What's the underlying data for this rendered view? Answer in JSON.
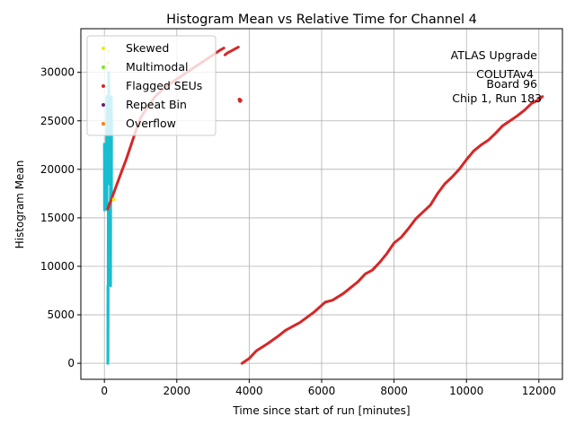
{
  "chart_data": {
    "type": "scatter",
    "title": "Histogram Mean vs Relative Time for Channel 4",
    "xlabel": "Time since start of run [minutes]",
    "ylabel": "Histogram Mean",
    "xlim": [
      -650,
      12650
    ],
    "ylim": [
      -1650,
      34500
    ],
    "xticks": [
      0,
      2000,
      4000,
      6000,
      8000,
      10000,
      12000
    ],
    "yticks": [
      0,
      5000,
      10000,
      15000,
      20000,
      25000,
      30000
    ],
    "grid": true,
    "legend_position": "top-left",
    "annotation": [
      "ATLAS Upgrade",
      "COLUTAv4",
      "Board 96",
      "Chip 1, Run 183"
    ],
    "legend": [
      {
        "label": "Skewed",
        "color": "#e8ec1c"
      },
      {
        "label": "Multimodal",
        "color": "#7fe81e"
      },
      {
        "label": "Flagged SEUs",
        "color": "#d62728"
      },
      {
        "label": "Repeat Bin",
        "color": "#6a1b6e"
      },
      {
        "label": "Overflow",
        "color": "#ff7f0e"
      }
    ],
    "series": [
      {
        "color": "#17becf",
        "segments": [
          [
            [
              0,
              22600
            ],
            [
              2,
              15800
            ],
            [
              4,
              22500
            ],
            [
              6,
              16000
            ]
          ],
          [
            [
              60,
              24000
            ],
            [
              64,
              15900
            ],
            [
              68,
              27500
            ],
            [
              72,
              16500
            ]
          ],
          [
            [
              95,
              0
            ],
            [
              97,
              8000
            ],
            [
              99,
              200
            ],
            [
              101,
              7800
            ],
            [
              103,
              3500
            ],
            [
              106,
              16500
            ]
          ],
          [
            [
              118,
              30000
            ],
            [
              120,
              20000
            ],
            [
              124,
              28000
            ],
            [
              128,
              18500
            ],
            [
              132,
              26000
            ]
          ],
          [
            [
              165,
              13200
            ],
            [
              168,
              22000
            ],
            [
              171,
              8000
            ],
            [
              174,
              18000
            ]
          ],
          [
            [
              190,
              20000
            ],
            [
              193,
              27500
            ],
            [
              196,
              17500
            ],
            [
              199,
              25000
            ]
          ]
        ]
      },
      {
        "color": "#d62728",
        "segments": [
          [
            [
              90,
              15900
            ],
            [
              130,
              16300
            ],
            [
              200,
              17000
            ],
            [
              300,
              18000
            ],
            [
              400,
              19000
            ],
            [
              500,
              20000
            ],
            [
              600,
              21000
            ],
            [
              700,
              22100
            ],
            [
              800,
              23200
            ],
            [
              900,
              24300
            ],
            [
              1000,
              25300
            ],
            [
              1200,
              26500
            ],
            [
              1400,
              27500
            ],
            [
              1600,
              28200
            ],
            [
              1800,
              28800
            ],
            [
              2000,
              29300
            ],
            [
              2200,
              29800
            ],
            [
              2400,
              30300
            ],
            [
              2600,
              30800
            ],
            [
              2800,
              31300
            ],
            [
              3000,
              31800
            ],
            [
              3200,
              32300
            ],
            [
              3300,
              32500
            ]
          ],
          [
            [
              3330,
              31800
            ],
            [
              3400,
              32000
            ],
            [
              3500,
              32200
            ],
            [
              3600,
              32400
            ],
            [
              3700,
              32600
            ]
          ],
          [
            [
              3800,
              0
            ],
            [
              4000,
              500
            ],
            [
              4200,
              1300
            ],
            [
              4500,
              2000
            ],
            [
              4800,
              2800
            ],
            [
              5000,
              3400
            ],
            [
              5400,
              4200
            ],
            [
              5800,
              5300
            ],
            [
              6100,
              6300
            ],
            [
              6300,
              6500
            ],
            [
              6600,
              7200
            ],
            [
              7000,
              8400
            ],
            [
              7200,
              9200
            ],
            [
              7400,
              9600
            ],
            [
              7600,
              10400
            ],
            [
              7800,
              11300
            ],
            [
              8000,
              12400
            ],
            [
              8200,
              13000
            ],
            [
              8400,
              13900
            ],
            [
              8600,
              14900
            ],
            [
              8800,
              15600
            ],
            [
              9000,
              16300
            ],
            [
              9200,
              17500
            ],
            [
              9400,
              18500
            ],
            [
              9600,
              19200
            ],
            [
              9800,
              20000
            ],
            [
              10000,
              21000
            ],
            [
              10200,
              21900
            ],
            [
              10400,
              22500
            ],
            [
              10600,
              23000
            ],
            [
              10800,
              23700
            ],
            [
              11000,
              24500
            ],
            [
              11200,
              25000
            ],
            [
              11400,
              25500
            ],
            [
              11600,
              26100
            ],
            [
              11800,
              26800
            ],
            [
              12000,
              27200
            ],
            [
              12100,
              27500
            ]
          ]
        ],
        "points": [
          [
            3730,
            27200
          ],
          [
            3745,
            27050
          ],
          [
            3760,
            27100
          ]
        ]
      }
    ],
    "markers": [
      {
        "x": 110,
        "y": 32200,
        "color": "#e8ec1c"
      },
      {
        "x": 95,
        "y": 31000,
        "color": "#e8ec1c"
      },
      {
        "x": 260,
        "y": 16900,
        "color": "#e8ec1c"
      }
    ]
  }
}
